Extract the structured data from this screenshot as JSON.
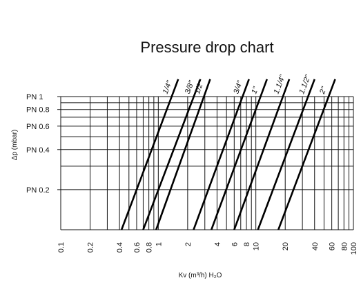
{
  "chart_data": {
    "type": "line",
    "title": "Pressure drop chart",
    "xlabel": "Kv (m³/h) H₂O",
    "ylabel": "Δp  (mbar)",
    "x_scale": "log",
    "y_scale": "log",
    "xlim": [
      0.1,
      100
    ],
    "ylim": [
      0.1,
      1
    ],
    "x_ticks": [
      0.1,
      0.2,
      0.4,
      0.6,
      0.8,
      1,
      2,
      4,
      6,
      8,
      10,
      20,
      40,
      60,
      80,
      100
    ],
    "x_tick_labels": [
      "0.1",
      "0.2",
      "0.4",
      "0.6",
      "0.8",
      "1",
      "2",
      "4",
      "6",
      "8",
      "10",
      "20",
      "40",
      "60",
      "80",
      "100"
    ],
    "y_ticks": [
      1,
      0.8,
      0.6,
      0.4,
      0.2
    ],
    "y_tick_labels": [
      "PN  1",
      "PN  0.8",
      "PN  0.6",
      "PN  0.4",
      "PN  0.2"
    ],
    "grid": true,
    "series": [
      {
        "name": "1/4\"",
        "x": [
          0.42,
          1.6
        ],
        "y": [
          0.1,
          1.35
        ]
      },
      {
        "name": "3/8\"",
        "x": [
          0.7,
          2.7
        ],
        "y": [
          0.1,
          1.35
        ]
      },
      {
        "name": "1/2\"",
        "x": [
          0.95,
          3.4
        ],
        "y": [
          0.1,
          1.35
        ]
      },
      {
        "name": "3/4\"",
        "x": [
          2.3,
          8.5
        ],
        "y": [
          0.1,
          1.35
        ]
      },
      {
        "name": "1\"",
        "x": [
          3.5,
          13
        ],
        "y": [
          0.1,
          1.35
        ]
      },
      {
        "name": "1.1/4\"",
        "x": [
          6.0,
          22
        ],
        "y": [
          0.1,
          1.35
        ]
      },
      {
        "name": "1.1/2\"",
        "x": [
          10.5,
          40
        ],
        "y": [
          0.1,
          1.35
        ]
      },
      {
        "name": "2\"",
        "x": [
          17,
          65
        ],
        "y": [
          0.1,
          1.35
        ]
      }
    ]
  }
}
